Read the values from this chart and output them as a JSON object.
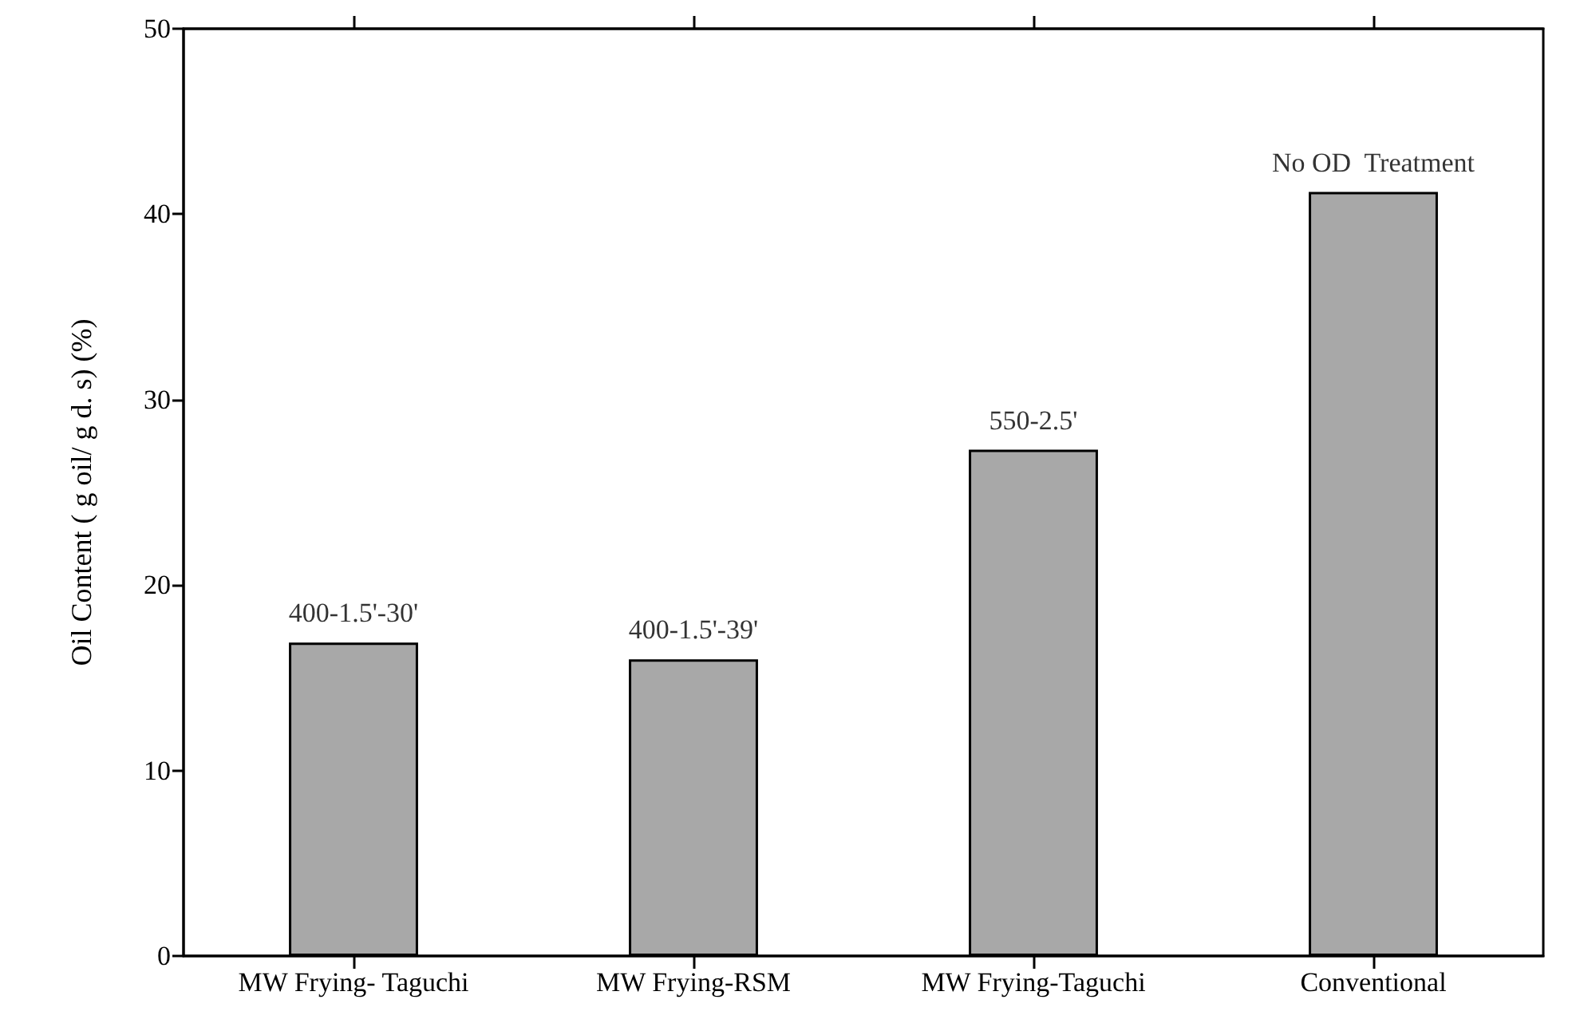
{
  "chart_data": {
    "type": "bar",
    "categories": [
      "MW Frying- Taguchi",
      "MW Frying-RSM",
      "MW Frying-Taguchi",
      "Conventional"
    ],
    "values": [
      16.9,
      16.0,
      27.3,
      41.2
    ],
    "color": "#a8a8a8",
    "ylabel": "Oil Content ( g oil/ g d. s) (%)",
    "ylim": [
      0,
      50
    ],
    "yticks": [
      0,
      10,
      20,
      30,
      40,
      50
    ],
    "grid": false,
    "annotations": [
      {
        "text": "400-1.5'-30'",
        "x": "MW Frying- Taguchi",
        "y": 16.9
      },
      {
        "text": "400-1.5'-39'",
        "x": "MW Frying-RSM",
        "y": 16.0
      },
      {
        "text": "550-2.5'",
        "x": "MW Frying-Taguchi",
        "y": 27.3
      },
      {
        "text": "No OD  Treatment",
        "x": "Conventional",
        "y": 41.2
      }
    ]
  }
}
